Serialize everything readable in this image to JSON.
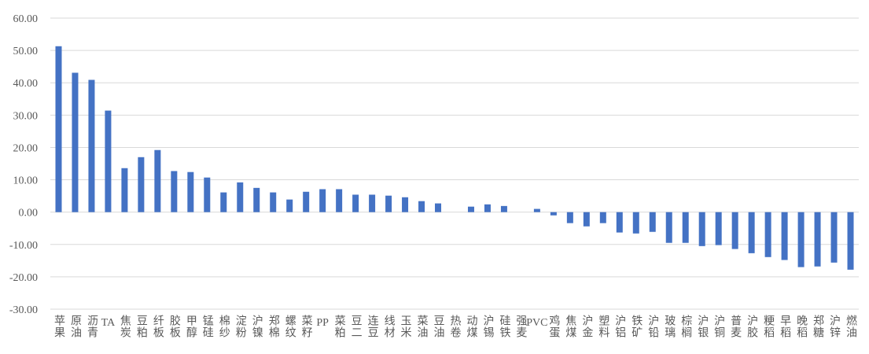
{
  "chart_data": {
    "type": "bar",
    "categories": [
      "苹果",
      "原油",
      "沥青",
      "TA",
      "焦炭",
      "豆粕",
      "纤板",
      "胶板",
      "甲醇",
      "锰硅",
      "棉纱",
      "淀粉",
      "沪镍",
      "郑棉",
      "螺纹",
      "菜籽",
      "PP",
      "菜粕",
      "豆二",
      "连豆",
      "线材",
      "玉米",
      "菜油",
      "豆油",
      "热卷",
      "动煤",
      "沪锡",
      "硅铁",
      "强麦",
      "PVC",
      "鸡蛋",
      "焦煤",
      "沪金",
      "塑料",
      "沪铝",
      "铁矿",
      "沪铅",
      "玻璃",
      "棕榈",
      "沪银",
      "沪铜",
      "普麦",
      "沪胶",
      "粳稻",
      "早稻",
      "晚稻",
      "郑糖",
      "沪锌",
      "燃油"
    ],
    "values": [
      51.3,
      43.1,
      40.9,
      31.4,
      13.6,
      17.0,
      19.2,
      12.7,
      12.4,
      10.7,
      6.1,
      9.2,
      7.5,
      6.1,
      3.9,
      6.3,
      7.1,
      7.1,
      5.4,
      5.4,
      5.1,
      4.6,
      3.4,
      2.7,
      0,
      1.7,
      2.4,
      1.9,
      0,
      1.0,
      -1.0,
      -3.4,
      -4.4,
      -3.4,
      -6.3,
      -6.6,
      -6.1,
      -9.5,
      -9.5,
      -10.5,
      -10.2,
      -11.4,
      -12.7,
      -13.9,
      -14.8,
      -17.0,
      -16.8,
      -15.6,
      -17.8
    ],
    "color": "#4472c4",
    "ylim": [
      -30,
      60
    ],
    "yticks": [
      {
        "value": -30,
        "label": "-30.00"
      },
      {
        "value": -20,
        "label": "-20.00"
      },
      {
        "value": -10,
        "label": "-10.00"
      },
      {
        "value": 0,
        "label": "0.00"
      },
      {
        "value": 10,
        "label": "10.00"
      },
      {
        "value": 20,
        "label": "20.00"
      },
      {
        "value": 30,
        "label": "30.00"
      },
      {
        "value": 40,
        "label": "40.00"
      },
      {
        "value": 50,
        "label": "50.00"
      },
      {
        "value": 60,
        "label": "60.00"
      }
    ],
    "grid": true
  }
}
